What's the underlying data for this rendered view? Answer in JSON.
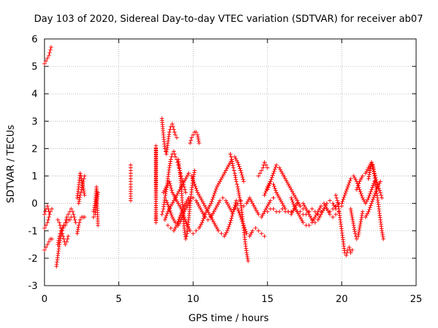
{
  "chart_data": {
    "type": "scatter",
    "title": "Day 103 of 2020, Sidereal Day-to-day VTEC variation (SDTVAR) for receiver ab07",
    "xlabel": "GPS time / hours",
    "ylabel": "SDTVAR / TECUs",
    "xlim": [
      0,
      25
    ],
    "ylim": [
      -3,
      6
    ],
    "xticks": [
      "0",
      "5",
      "10",
      "15",
      "20",
      "25"
    ],
    "yticks": [
      "-3",
      "-2",
      "-1",
      "0",
      "1",
      "2",
      "3",
      "4",
      "5",
      "6"
    ],
    "grid": true,
    "marker": "+",
    "series": [
      {
        "name": "SDTVAR",
        "color": "#ff0000",
        "segments": [
          {
            "x": [
              0.0,
              0.1,
              0.2,
              0.3,
              0.4,
              0.45
            ],
            "y": [
              5.1,
              5.2,
              5.3,
              5.4,
              5.6,
              5.7
            ]
          },
          {
            "x": [
              0.0,
              0.1,
              0.2,
              0.3,
              0.4,
              0.5
            ],
            "y": [
              -1.7,
              -1.6,
              -1.5,
              -1.4,
              -1.3,
              -1.3
            ]
          },
          {
            "x": [
              0.0,
              0.1,
              0.2,
              0.3,
              0.4,
              0.5
            ],
            "y": [
              -0.9,
              -0.8,
              -0.7,
              -0.5,
              -0.3,
              -0.2
            ]
          },
          {
            "x": [
              0.0,
              0.1,
              0.2,
              0.3
            ],
            "y": [
              -0.4,
              -0.2,
              -0.1,
              -0.3
            ]
          },
          {
            "x": [
              0.8,
              0.9,
              1.0,
              1.1,
              1.2,
              1.3,
              1.4,
              1.5,
              1.6,
              1.7,
              1.8,
              1.9,
              2.0,
              2.1
            ],
            "y": [
              -2.3,
              -1.9,
              -1.5,
              -1.2,
              -1.0,
              -0.8,
              -0.7,
              -0.5,
              -0.4,
              -0.3,
              -0.2,
              -0.3,
              -0.5,
              -0.7
            ]
          },
          {
            "x": [
              0.9,
              1.0,
              1.1,
              1.2,
              1.3,
              1.4,
              1.5,
              1.6,
              1.7,
              1.8
            ],
            "y": [
              -1.5,
              -1.2,
              -1.0,
              -0.9,
              -0.8,
              -0.8,
              -0.7,
              -0.6,
              -0.6,
              -0.5
            ]
          },
          {
            "x": [
              0.9,
              1.0,
              1.1,
              1.2,
              1.3,
              1.4,
              1.5,
              1.6
            ],
            "y": [
              -0.6,
              -0.7,
              -0.9,
              -1.1,
              -1.3,
              -1.5,
              -1.4,
              -1.2
            ]
          },
          {
            "x": [
              2.2,
              2.3,
              2.4,
              2.5,
              2.6,
              2.7
            ],
            "y": [
              0.2,
              0.6,
              1.1,
              0.9,
              0.6,
              0.3
            ]
          },
          {
            "x": [
              2.2,
              2.3,
              2.4,
              2.5,
              2.6,
              2.7
            ],
            "y": [
              -1.1,
              -0.8,
              -0.6,
              -0.5,
              -0.5,
              -0.5
            ]
          },
          {
            "x": [
              2.3,
              2.4,
              2.5,
              2.6,
              2.7
            ],
            "y": [
              0.0,
              0.3,
              0.5,
              0.8,
              1.0
            ]
          },
          {
            "x": [
              3.3,
              3.4,
              3.5,
              3.6
            ],
            "y": [
              -0.3,
              0.0,
              0.6,
              -0.8
            ]
          },
          {
            "x": [
              3.3,
              3.4,
              3.5,
              3.6
            ],
            "y": [
              -0.5,
              -0.4,
              0.1,
              0.4
            ]
          },
          {
            "x": [
              5.8,
              5.8,
              5.8,
              5.8,
              5.8,
              5.8
            ],
            "y": [
              0.1,
              0.6,
              0.8,
              1.0,
              1.2,
              1.4
            ]
          },
          {
            "x": [
              7.5,
              7.5,
              7.5,
              7.5,
              7.5
            ],
            "y": [
              -0.7,
              0.7,
              2.0,
              2.1,
              -0.6
            ]
          },
          {
            "x": [
              7.9,
              8.0,
              8.1,
              8.2,
              8.3,
              8.4,
              8.5,
              8.6,
              8.7,
              8.8,
              8.9
            ],
            "y": [
              3.1,
              2.5,
              2.0,
              1.8,
              2.2,
              2.6,
              2.8,
              2.9,
              2.7,
              2.5,
              2.4
            ]
          },
          {
            "x": [
              7.9,
              8.0,
              8.1,
              8.2,
              8.3,
              8.4,
              8.5,
              8.6,
              8.7,
              8.8,
              8.9,
              9.0,
              9.1,
              9.2,
              9.3,
              9.4,
              9.5
            ],
            "y": [
              -0.4,
              -0.2,
              0.2,
              0.5,
              0.9,
              1.3,
              1.6,
              1.8,
              1.9,
              1.7,
              1.6,
              1.4,
              1.2,
              1.0,
              0.8,
              0.6,
              0.4
            ]
          },
          {
            "x": [
              8.0,
              8.2,
              8.4,
              8.6,
              8.8,
              9.0,
              9.2,
              9.4,
              9.6,
              9.8,
              10.0,
              10.2,
              10.4,
              10.6,
              10.8,
              11.0,
              11.2,
              11.4,
              11.6,
              11.8,
              12.0,
              12.2,
              12.4,
              12.6,
              12.8,
              13.0,
              13.2,
              13.4
            ],
            "y": [
              0.4,
              0.6,
              0.8,
              0.4,
              0.2,
              0.0,
              -0.2,
              -0.5,
              -0.8,
              -1.0,
              -1.1,
              -1.0,
              -0.9,
              -0.7,
              -0.4,
              -0.2,
              0.0,
              0.3,
              0.6,
              0.8,
              1.0,
              1.2,
              1.4,
              1.6,
              1.7,
              1.5,
              1.2,
              0.8
            ]
          },
          {
            "x": [
              8.1,
              8.3,
              8.5,
              8.7,
              8.9,
              9.1,
              9.3,
              9.5,
              9.7,
              9.9,
              10.1,
              10.3,
              10.5,
              10.7,
              10.9,
              11.1,
              11.3,
              11.5,
              11.7,
              11.9,
              12.1,
              12.3,
              12.5,
              12.7,
              12.9
            ],
            "y": [
              -0.6,
              -0.3,
              -0.1,
              0.1,
              0.3,
              0.5,
              0.7,
              0.9,
              1.1,
              1.0,
              0.7,
              0.4,
              0.2,
              0.0,
              -0.2,
              -0.4,
              -0.6,
              -0.8,
              -1.0,
              -1.1,
              -1.2,
              -1.0,
              -0.7,
              -0.3,
              0.1
            ]
          },
          {
            "x": [
              8.2,
              8.4,
              8.6,
              8.8,
              9.0,
              9.2,
              9.4,
              9.6,
              9.8,
              10.0,
              10.2,
              10.4,
              10.6,
              10.8,
              11.0,
              11.2,
              11.4,
              11.6,
              11.8,
              12.0,
              12.2,
              12.4,
              12.6,
              12.8,
              13.0,
              13.2
            ],
            "y": [
              0.1,
              -0.2,
              -0.5,
              -0.7,
              -0.8,
              -0.6,
              -0.3,
              -0.1,
              0.1,
              0.2,
              0.1,
              -0.1,
              -0.3,
              -0.5,
              -0.6,
              -0.5,
              -0.3,
              -0.1,
              0.1,
              0.2,
              0.1,
              -0.1,
              -0.3,
              -0.2,
              0.0,
              0.1
            ]
          },
          {
            "x": [
              8.3,
              8.5,
              8.7,
              8.9,
              9.1,
              9.3,
              9.5,
              9.7
            ],
            "y": [
              -0.8,
              -0.9,
              -1.0,
              -0.8,
              -0.5,
              -0.2,
              0.0,
              0.2
            ]
          },
          {
            "x": [
              9.0,
              9.1,
              9.2,
              9.3,
              9.4,
              9.5,
              9.6,
              9.7,
              9.8,
              9.9,
              10.0,
              10.1
            ],
            "y": [
              1.6,
              1.2,
              0.6,
              -0.2,
              -0.9,
              -1.3,
              -1.1,
              -0.6,
              0.0,
              0.5,
              0.9,
              1.2
            ]
          },
          {
            "x": [
              9.8,
              9.9,
              10.0,
              10.1,
              10.2,
              10.3,
              10.4
            ],
            "y": [
              2.2,
              2.4,
              2.5,
              2.6,
              2.6,
              2.5,
              2.2
            ]
          },
          {
            "x": [
              12.5,
              12.6,
              12.7,
              12.8,
              12.9,
              13.0,
              13.1,
              13.2,
              13.3,
              13.4,
              13.5,
              13.6,
              13.7
            ],
            "y": [
              1.8,
              1.6,
              1.3,
              1.1,
              0.8,
              0.6,
              0.3,
              0.0,
              -0.4,
              -0.9,
              -1.4,
              -1.8,
              -2.1
            ]
          },
          {
            "x": [
              13.0,
              13.2,
              13.4,
              13.6,
              13.8,
              14.0,
              14.2,
              14.4,
              14.6,
              14.8
            ],
            "y": [
              -0.2,
              -0.5,
              -0.8,
              -1.1,
              -1.2,
              -1.0,
              -0.9,
              -1.0,
              -1.1,
              -1.2
            ]
          },
          {
            "x": [
              13.4,
              13.6,
              13.8,
              14.0,
              14.2,
              14.4,
              14.6,
              14.8,
              15.0,
              15.2,
              15.4
            ],
            "y": [
              -0.1,
              0.0,
              0.2,
              0.0,
              -0.2,
              -0.4,
              -0.5,
              -0.3,
              -0.1,
              0.1,
              0.2
            ]
          },
          {
            "x": [
              14.4,
              14.5,
              14.6,
              14.7,
              14.8,
              14.9,
              15.0
            ],
            "y": [
              1.0,
              1.1,
              1.2,
              1.3,
              1.5,
              1.4,
              1.3
            ]
          },
          {
            "x": [
              15.0,
              15.2,
              15.4,
              15.6,
              15.8,
              16.0,
              16.2,
              16.4,
              16.6,
              16.8,
              17.0,
              17.2,
              17.4
            ],
            "y": [
              0.5,
              0.8,
              1.1,
              1.4,
              1.3,
              1.1,
              0.9,
              0.7,
              0.5,
              0.3,
              0.1,
              -0.1,
              -0.2
            ]
          },
          {
            "x": [
              14.8,
              15.0,
              15.2,
              15.4,
              15.6,
              15.8,
              16.0,
              16.2,
              16.4,
              16.6,
              16.8,
              17.0
            ],
            "y": [
              0.3,
              0.6,
              0.8,
              0.7,
              0.4,
              0.2,
              0.0,
              -0.2,
              -0.3,
              -0.4,
              -0.2,
              0.0
            ]
          },
          {
            "x": [
              15.0,
              15.2,
              15.4,
              15.6,
              15.8,
              16.0,
              16.2,
              16.4,
              16.6,
              16.8,
              17.0,
              17.2,
              17.4,
              17.6,
              17.8,
              18.0,
              18.2,
              18.4,
              18.6,
              18.8,
              19.0,
              19.2,
              19.4,
              19.6,
              19.8,
              20.0
            ],
            "y": [
              -0.3,
              -0.2,
              -0.2,
              -0.3,
              -0.3,
              -0.2,
              -0.3,
              -0.3,
              -0.3,
              -0.2,
              -0.3,
              -0.3,
              -0.4,
              -0.4,
              -0.3,
              -0.2,
              -0.3,
              -0.4,
              -0.3,
              -0.2,
              -0.2,
              -0.3,
              -0.2,
              -0.1,
              0.0,
              -0.1
            ]
          },
          {
            "x": [
              16.6,
              16.8,
              17.0,
              17.2,
              17.4,
              17.6,
              17.8,
              18.0,
              18.2,
              18.4,
              18.6,
              18.8,
              19.0,
              19.2,
              19.4,
              19.6
            ],
            "y": [
              0.2,
              -0.1,
              -0.3,
              -0.5,
              -0.7,
              -0.8,
              -0.8,
              -0.7,
              -0.5,
              -0.3,
              -0.1,
              0.0,
              -0.2,
              -0.4,
              -0.5,
              -0.4
            ]
          },
          {
            "x": [
              17.2,
              17.4,
              17.6,
              17.8,
              18.0,
              18.2,
              18.4,
              18.6,
              18.8,
              19.0,
              19.2,
              19.4,
              19.6,
              19.8
            ],
            "y": [
              -0.1,
              0.0,
              -0.2,
              -0.4,
              -0.6,
              -0.7,
              -0.6,
              -0.4,
              -0.2,
              0.0,
              0.1,
              0.0,
              -0.2,
              -0.3
            ]
          },
          {
            "x": [
              19.6,
              19.7,
              19.8,
              19.9,
              20.0,
              20.1,
              20.2,
              20.3,
              20.4,
              20.5,
              20.6,
              20.7
            ],
            "y": [
              0.3,
              0.1,
              -0.2,
              -0.6,
              -1.0,
              -1.4,
              -1.8,
              -1.9,
              -1.7,
              -1.6,
              -1.8,
              -1.7
            ]
          },
          {
            "x": [
              20.0,
              20.2,
              20.4,
              20.6,
              20.8,
              21.0,
              21.2,
              21.4,
              21.6,
              21.8,
              22.0,
              22.2
            ],
            "y": [
              0.0,
              0.3,
              0.6,
              0.9,
              1.0,
              0.8,
              0.5,
              0.2,
              0.0,
              0.2,
              0.5,
              0.8
            ]
          },
          {
            "x": [
              20.6,
              20.7,
              20.8,
              20.9,
              21.0,
              21.1,
              21.2,
              21.3,
              21.4
            ],
            "y": [
              -0.2,
              -0.5,
              -0.8,
              -1.1,
              -1.3,
              -1.2,
              -0.9,
              -0.6,
              -0.3
            ]
          },
          {
            "x": [
              21.0,
              21.2,
              21.4,
              21.6,
              21.8,
              22.0,
              22.2,
              22.4,
              22.6,
              22.7
            ],
            "y": [
              0.5,
              0.8,
              1.0,
              1.1,
              1.3,
              1.5,
              1.1,
              0.7,
              0.4,
              0.2
            ]
          },
          {
            "x": [
              21.8,
              21.9,
              22.0,
              22.1,
              22.2,
              22.3,
              22.4,
              22.5,
              22.6,
              22.7,
              22.8
            ],
            "y": [
              0.9,
              1.2,
              1.5,
              1.4,
              1.0,
              0.6,
              0.2,
              -0.2,
              -0.6,
              -1.0,
              -1.3
            ]
          },
          {
            "x": [
              21.6,
              21.8,
              22.0,
              22.2,
              22.4,
              22.6
            ],
            "y": [
              -0.5,
              -0.3,
              0.0,
              0.3,
              0.6,
              0.8
            ]
          }
        ]
      }
    ]
  }
}
